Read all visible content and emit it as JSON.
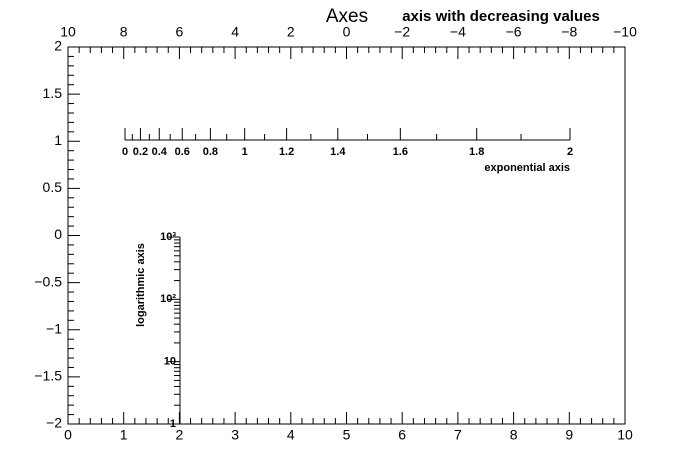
{
  "chart_data": {
    "type": "axes",
    "title": "Axes",
    "xlim": [
      0,
      10
    ],
    "xticks": [
      0,
      1,
      2,
      3,
      4,
      5,
      6,
      7,
      8,
      9,
      10
    ],
    "ylim": [
      -2,
      2
    ],
    "yticks": [
      {
        "value": -2,
        "label": "−2"
      },
      {
        "value": -1.5,
        "label": "−1.5"
      },
      {
        "value": -1,
        "label": "−1"
      },
      {
        "value": -0.5,
        "label": "−0.5"
      },
      0,
      0.5,
      1,
      1.5,
      2
    ],
    "axes": [
      {
        "title": "axis with decreasing values",
        "lim": [
          10,
          -10
        ],
        "ticks": [
          10,
          8,
          6,
          4,
          2,
          0,
          {
            "value": -2,
            "label": "−2"
          },
          {
            "value": -4,
            "label": "−4"
          },
          {
            "value": -6,
            "label": "−6"
          },
          {
            "value": -8,
            "label": "−8"
          },
          {
            "value": -10,
            "label": "−10"
          }
        ]
      },
      {
        "title": "exponential axis",
        "scale": "exp",
        "lim": [
          0,
          2
        ],
        "ticks": [
          0,
          0.2,
          0.4,
          0.6,
          0.8,
          1,
          1.2,
          1.4,
          1.6,
          1.8,
          2
        ]
      },
      {
        "title": "logarithmic axis",
        "scale": "log",
        "lim": [
          1,
          1000
        ],
        "ticks": [
          1,
          10,
          {
            "value": 100,
            "label": "10²"
          },
          {
            "value": 1000,
            "label": "10³"
          }
        ]
      }
    ]
  }
}
